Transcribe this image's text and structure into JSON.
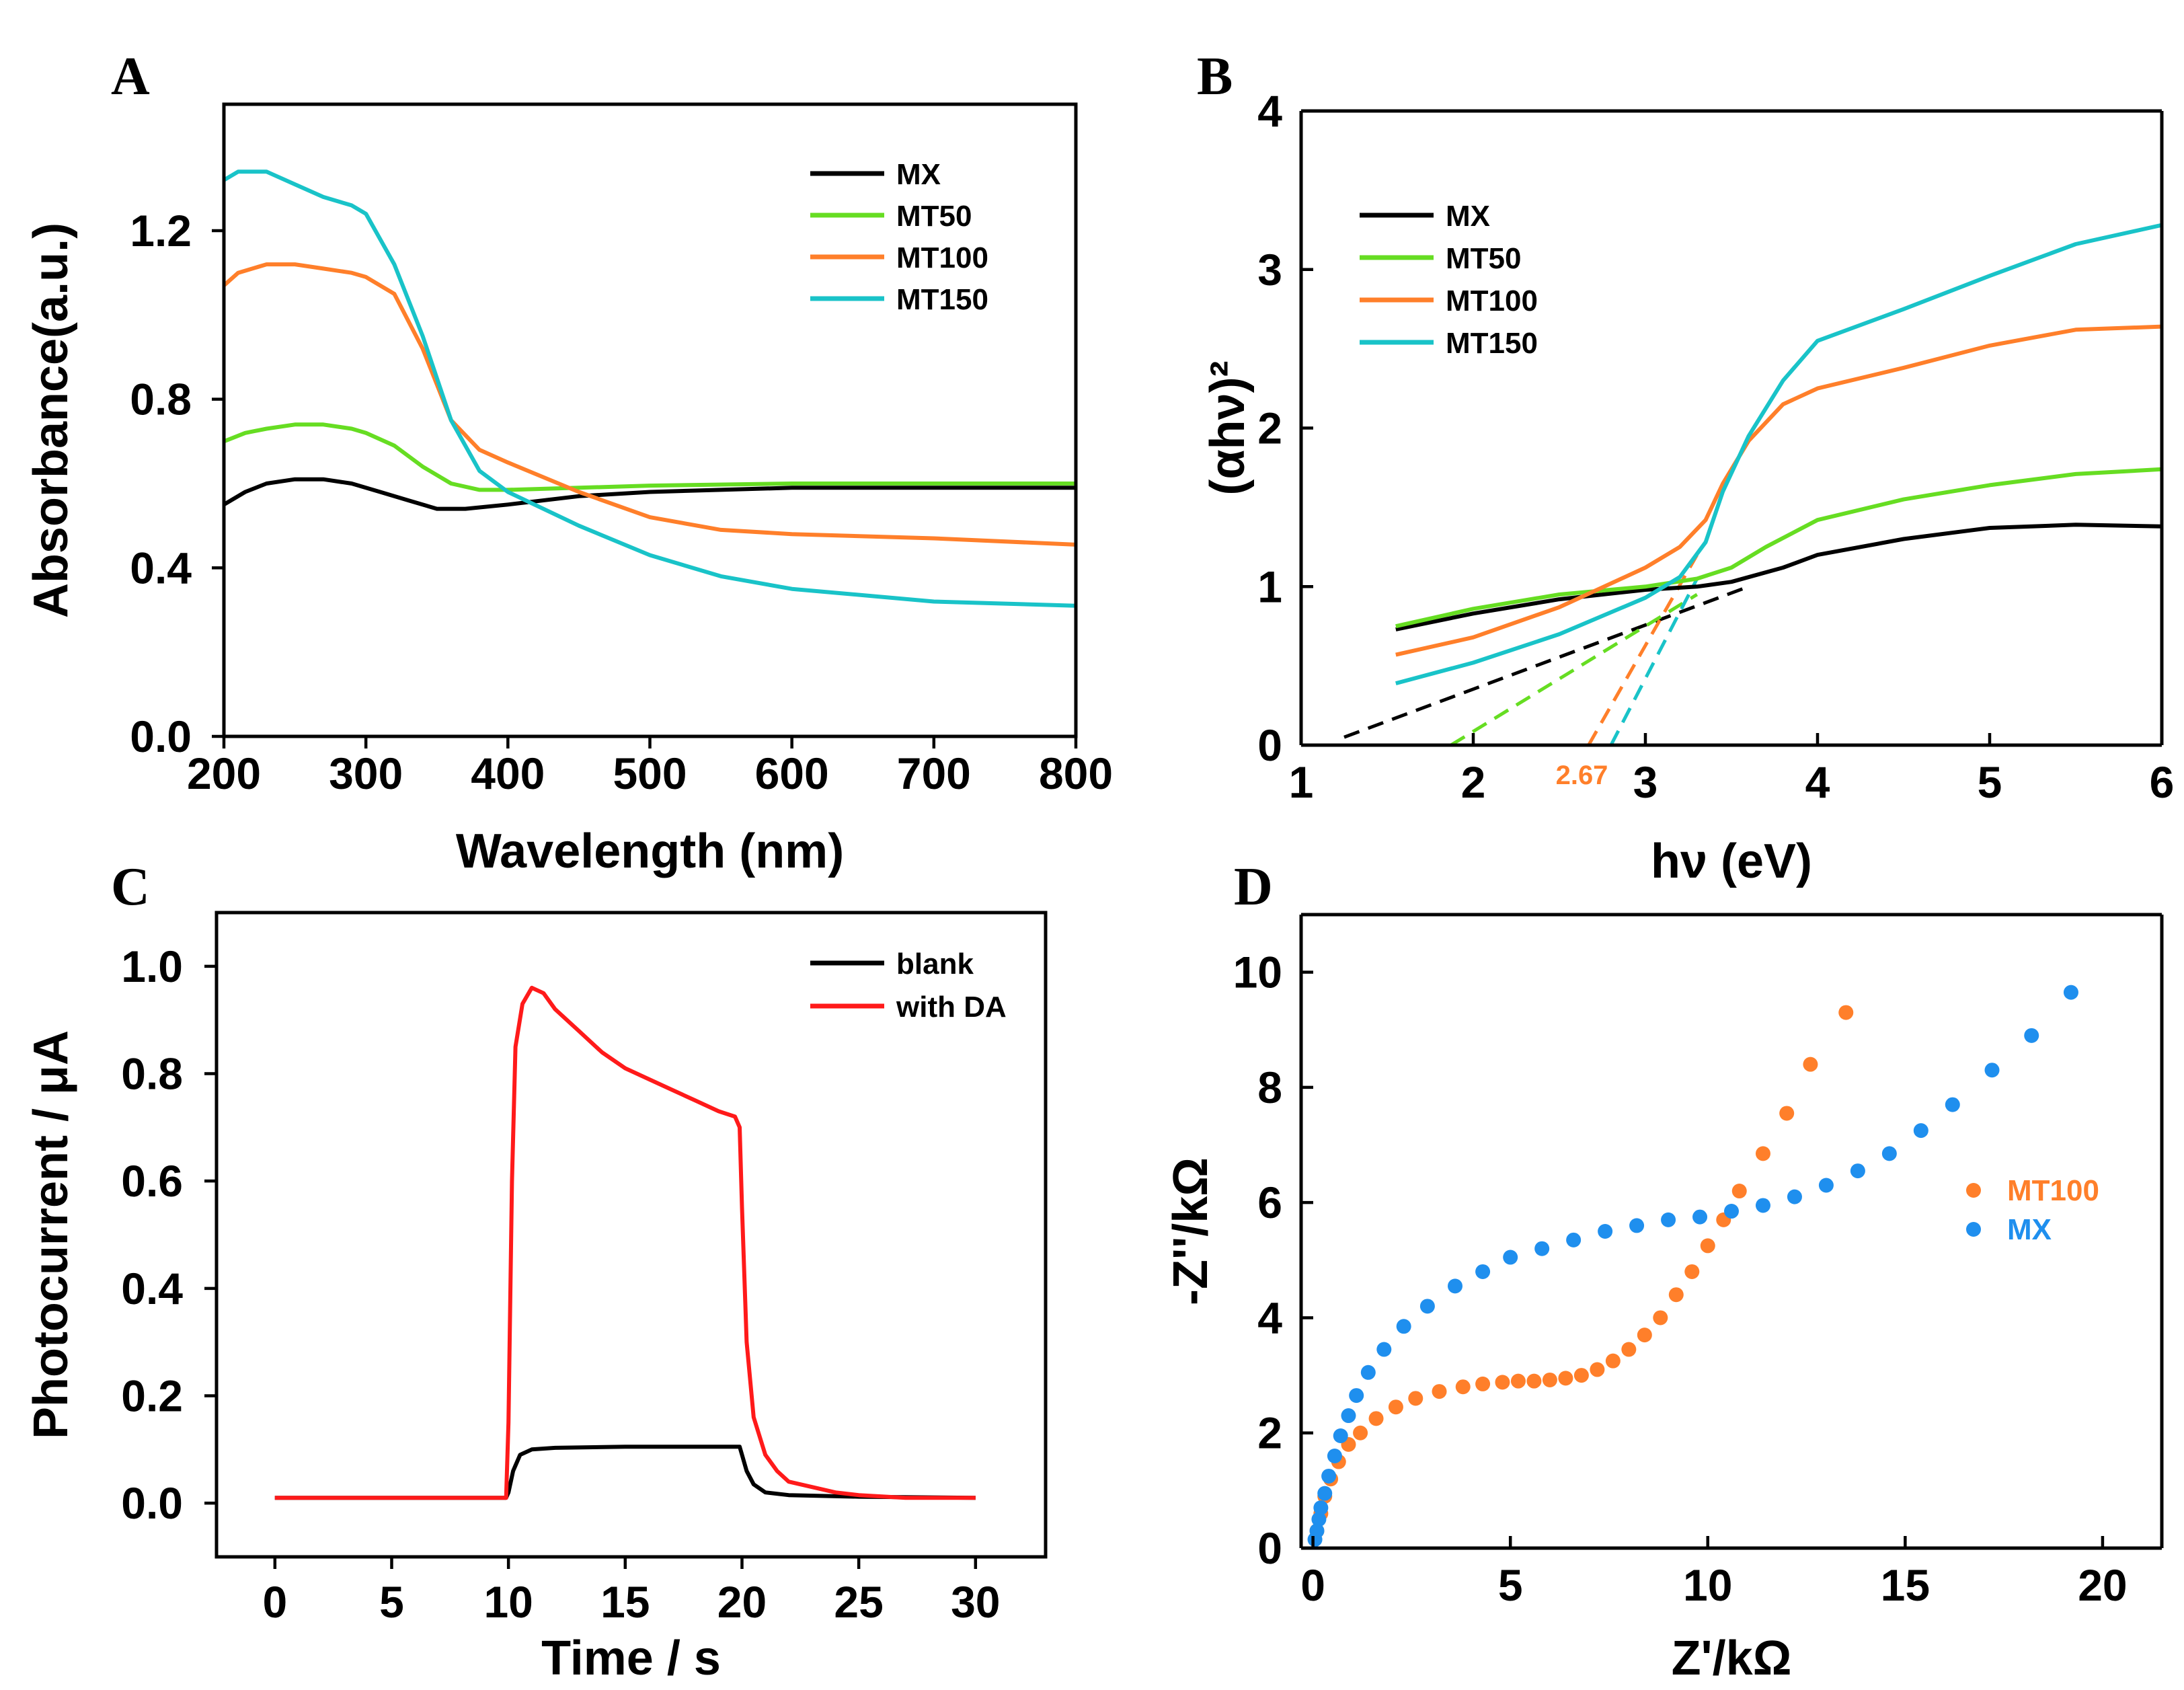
{
  "colors": {
    "black": "#000000",
    "green": "#66dd22",
    "orange": "#ff7f2a",
    "cyan": "#19c3c8",
    "red": "#ff1a1a",
    "blue": "#1f8fee"
  },
  "chart_data": [
    {
      "id": "A",
      "panel_label": "A",
      "type": "line",
      "xlabel": "Wavelength (nm)",
      "ylabel": "Absorbance(a.u.)",
      "xlim": [
        200,
        800
      ],
      "ylim": [
        0,
        1.5
      ],
      "xticks": [
        200,
        300,
        400,
        500,
        600,
        700,
        800
      ],
      "xtick_labels": [
        "200",
        "300",
        "400",
        "500",
        "600",
        "700",
        "800"
      ],
      "yticks": [
        0,
        0.4,
        0.8,
        1.2
      ],
      "ytick_labels": [
        "0.0",
        "0.4",
        "0.8",
        "1.2"
      ],
      "legend_position": "top-right",
      "series": [
        {
          "name": "MX",
          "color": "#000000",
          "x": [
            200,
            215,
            230,
            250,
            270,
            290,
            310,
            330,
            350,
            370,
            400,
            450,
            500,
            550,
            600,
            700,
            800
          ],
          "y": [
            0.55,
            0.58,
            0.6,
            0.61,
            0.61,
            0.6,
            0.58,
            0.56,
            0.54,
            0.54,
            0.55,
            0.57,
            0.58,
            0.585,
            0.59,
            0.59,
            0.59
          ]
        },
        {
          "name": "MT50",
          "color": "#66dd22",
          "x": [
            200,
            215,
            230,
            250,
            270,
            290,
            300,
            320,
            340,
            360,
            380,
            400,
            450,
            500,
            600,
            700,
            800
          ],
          "y": [
            0.7,
            0.72,
            0.73,
            0.74,
            0.74,
            0.73,
            0.72,
            0.69,
            0.64,
            0.6,
            0.585,
            0.585,
            0.59,
            0.595,
            0.6,
            0.6,
            0.6
          ]
        },
        {
          "name": "MT100",
          "color": "#ff7f2a",
          "x": [
            200,
            210,
            230,
            250,
            270,
            290,
            300,
            320,
            340,
            360,
            380,
            400,
            450,
            500,
            550,
            600,
            700,
            800
          ],
          "y": [
            1.07,
            1.1,
            1.12,
            1.12,
            1.11,
            1.1,
            1.09,
            1.05,
            0.92,
            0.75,
            0.68,
            0.65,
            0.58,
            0.52,
            0.49,
            0.48,
            0.47,
            0.455
          ]
        },
        {
          "name": "MT150",
          "color": "#19c3c8",
          "x": [
            200,
            210,
            230,
            250,
            270,
            290,
            300,
            320,
            340,
            360,
            380,
            400,
            450,
            500,
            550,
            600,
            700,
            800
          ],
          "y": [
            1.32,
            1.34,
            1.34,
            1.31,
            1.28,
            1.26,
            1.24,
            1.12,
            0.95,
            0.75,
            0.63,
            0.58,
            0.5,
            0.43,
            0.38,
            0.35,
            0.32,
            0.31
          ]
        }
      ]
    },
    {
      "id": "B",
      "panel_label": "B",
      "type": "line",
      "xlabel": "hν (eV)",
      "ylabel": "(αhν)²",
      "xlim": [
        1,
        6
      ],
      "ylim": [
        0,
        4
      ],
      "xticks": [
        1,
        2,
        3,
        4,
        5,
        6
      ],
      "xtick_labels": [
        "1",
        "2",
        "3",
        "4",
        "5",
        "6"
      ],
      "yticks": [
        0,
        1,
        2,
        3,
        4
      ],
      "ytick_labels": [
        "0",
        "1",
        "2",
        "3",
        "4"
      ],
      "legend_position": "top-left",
      "annotation": "2.67",
      "series": [
        {
          "name": "MX",
          "color": "#000000",
          "x": [
            1.55,
            2.0,
            2.5,
            3.0,
            3.3,
            3.5,
            3.8,
            4.0,
            4.5,
            5.0,
            5.5,
            6.0
          ],
          "y": [
            0.73,
            0.83,
            0.92,
            0.98,
            1.0,
            1.03,
            1.12,
            1.2,
            1.3,
            1.37,
            1.39,
            1.38
          ]
        },
        {
          "name": "MT50",
          "color": "#66dd22",
          "x": [
            1.55,
            2.0,
            2.5,
            3.0,
            3.3,
            3.5,
            3.7,
            4.0,
            4.5,
            5.0,
            5.5,
            6.0
          ],
          "y": [
            0.75,
            0.86,
            0.95,
            1.0,
            1.05,
            1.12,
            1.25,
            1.42,
            1.55,
            1.64,
            1.71,
            1.74
          ]
        },
        {
          "name": "MT100",
          "color": "#ff7f2a",
          "x": [
            1.55,
            2.0,
            2.5,
            3.0,
            3.2,
            3.35,
            3.45,
            3.6,
            3.8,
            4.0,
            4.5,
            5.0,
            5.5,
            6.0
          ],
          "y": [
            0.57,
            0.68,
            0.87,
            1.12,
            1.25,
            1.42,
            1.65,
            1.92,
            2.15,
            2.25,
            2.38,
            2.52,
            2.62,
            2.64
          ]
        },
        {
          "name": "MT150",
          "color": "#19c3c8",
          "x": [
            1.55,
            2.0,
            2.5,
            3.0,
            3.2,
            3.35,
            3.45,
            3.6,
            3.8,
            4.0,
            4.5,
            5.0,
            5.5,
            6.0
          ],
          "y": [
            0.39,
            0.52,
            0.7,
            0.93,
            1.06,
            1.28,
            1.6,
            1.95,
            2.3,
            2.55,
            2.75,
            2.96,
            3.16,
            3.28
          ]
        }
      ],
      "tangents": [
        {
          "color": "#000000",
          "x": [
            1.25,
            3.6
          ],
          "y": [
            0.05,
            1.0
          ]
        },
        {
          "color": "#66dd22",
          "x": [
            1.87,
            3.3
          ],
          "y": [
            0.0,
            0.95
          ]
        },
        {
          "color": "#ff7f2a",
          "x": [
            2.67,
            3.3
          ],
          "y": [
            0.0,
            1.2
          ]
        },
        {
          "color": "#19c3c8",
          "x": [
            2.8,
            3.3
          ],
          "y": [
            0.0,
            1.05
          ]
        }
      ]
    },
    {
      "id": "C",
      "panel_label": "C",
      "type": "line",
      "xlabel": "Time / s",
      "ylabel": "Photocurrent / μA",
      "xlim": [
        -2.5,
        33
      ],
      "ylim": [
        -0.1,
        1.1
      ],
      "xticks": [
        0,
        5,
        10,
        15,
        20,
        25,
        30
      ],
      "xtick_labels": [
        "0",
        "5",
        "10",
        "15",
        "20",
        "25",
        "30"
      ],
      "yticks": [
        0,
        0.2,
        0.4,
        0.6,
        0.8,
        1.0
      ],
      "ytick_labels": [
        "0.0",
        "0.2",
        "0.4",
        "0.6",
        "0.8",
        "1.0"
      ],
      "legend_position": "top-right",
      "series": [
        {
          "name": "blank",
          "color": "#000000",
          "x": [
            0,
            9.9,
            10.0,
            10.2,
            10.5,
            11,
            12,
            15,
            19.9,
            20.0,
            20.2,
            20.5,
            21,
            22,
            25,
            30
          ],
          "y": [
            0.01,
            0.01,
            0.02,
            0.06,
            0.09,
            0.1,
            0.103,
            0.105,
            0.105,
            0.09,
            0.06,
            0.035,
            0.02,
            0.015,
            0.012,
            0.01
          ]
        },
        {
          "name": "with DA",
          "color": "#ff1a1a",
          "x": [
            0,
            9.9,
            10.0,
            10.15,
            10.3,
            10.6,
            11.0,
            11.5,
            12,
            13,
            14,
            15,
            16,
            17,
            18,
            19,
            19.7,
            19.9,
            20.0,
            20.2,
            20.5,
            21,
            21.5,
            22,
            23,
            24,
            25,
            27,
            30
          ],
          "y": [
            0.01,
            0.01,
            0.15,
            0.6,
            0.85,
            0.93,
            0.96,
            0.95,
            0.92,
            0.88,
            0.84,
            0.81,
            0.79,
            0.77,
            0.75,
            0.73,
            0.72,
            0.7,
            0.55,
            0.3,
            0.16,
            0.09,
            0.06,
            0.04,
            0.03,
            0.02,
            0.015,
            0.01,
            0.01
          ]
        }
      ]
    },
    {
      "id": "D",
      "panel_label": "D",
      "type": "scatter",
      "xlabel": "Z'/kΩ",
      "ylabel": "-Z''/kΩ",
      "xlim": [
        -0.3,
        21.5
      ],
      "ylim": [
        0,
        11
      ],
      "xticks": [
        0,
        5,
        10,
        15,
        20
      ],
      "xtick_labels": [
        "0",
        "5",
        "10",
        "15",
        "20"
      ],
      "yticks": [
        0,
        2,
        4,
        6,
        8,
        10
      ],
      "ytick_labels": [
        "0",
        "2",
        "4",
        "6",
        "8",
        "10"
      ],
      "legend_position": "center-right",
      "series": [
        {
          "name": "MT100",
          "color": "#ff7f2a",
          "x": [
            0.1,
            0.2,
            0.3,
            0.45,
            0.65,
            0.9,
            1.2,
            1.6,
            2.1,
            2.6,
            3.2,
            3.8,
            4.3,
            4.8,
            5.2,
            5.6,
            6.0,
            6.4,
            6.8,
            7.2,
            7.6,
            8.0,
            8.4,
            8.8,
            9.2,
            9.6,
            10.0,
            10.4,
            10.8,
            11.4,
            12.0,
            12.6,
            13.5
          ],
          "y": [
            0.3,
            0.6,
            0.9,
            1.2,
            1.5,
            1.8,
            2.0,
            2.25,
            2.45,
            2.6,
            2.72,
            2.8,
            2.85,
            2.88,
            2.9,
            2.9,
            2.92,
            2.95,
            3.0,
            3.1,
            3.25,
            3.45,
            3.7,
            4.0,
            4.4,
            4.8,
            5.25,
            5.7,
            6.2,
            6.85,
            7.55,
            8.4,
            9.3
          ]
        },
        {
          "name": "MX",
          "color": "#1f8fee",
          "x": [
            0.05,
            0.1,
            0.15,
            0.2,
            0.3,
            0.4,
            0.55,
            0.7,
            0.9,
            1.1,
            1.4,
            1.8,
            2.3,
            2.9,
            3.6,
            4.3,
            5.0,
            5.8,
            6.6,
            7.4,
            8.2,
            9.0,
            9.8,
            10.6,
            11.4,
            12.2,
            13.0,
            13.8,
            14.6,
            15.4,
            16.2,
            17.2,
            18.2,
            19.2
          ],
          "y": [
            0.15,
            0.3,
            0.5,
            0.7,
            0.95,
            1.25,
            1.6,
            1.95,
            2.3,
            2.65,
            3.05,
            3.45,
            3.85,
            4.2,
            4.55,
            4.8,
            5.05,
            5.2,
            5.35,
            5.5,
            5.6,
            5.7,
            5.75,
            5.85,
            5.95,
            6.1,
            6.3,
            6.55,
            6.85,
            7.25,
            7.7,
            8.3,
            8.9,
            9.65
          ]
        }
      ]
    }
  ]
}
